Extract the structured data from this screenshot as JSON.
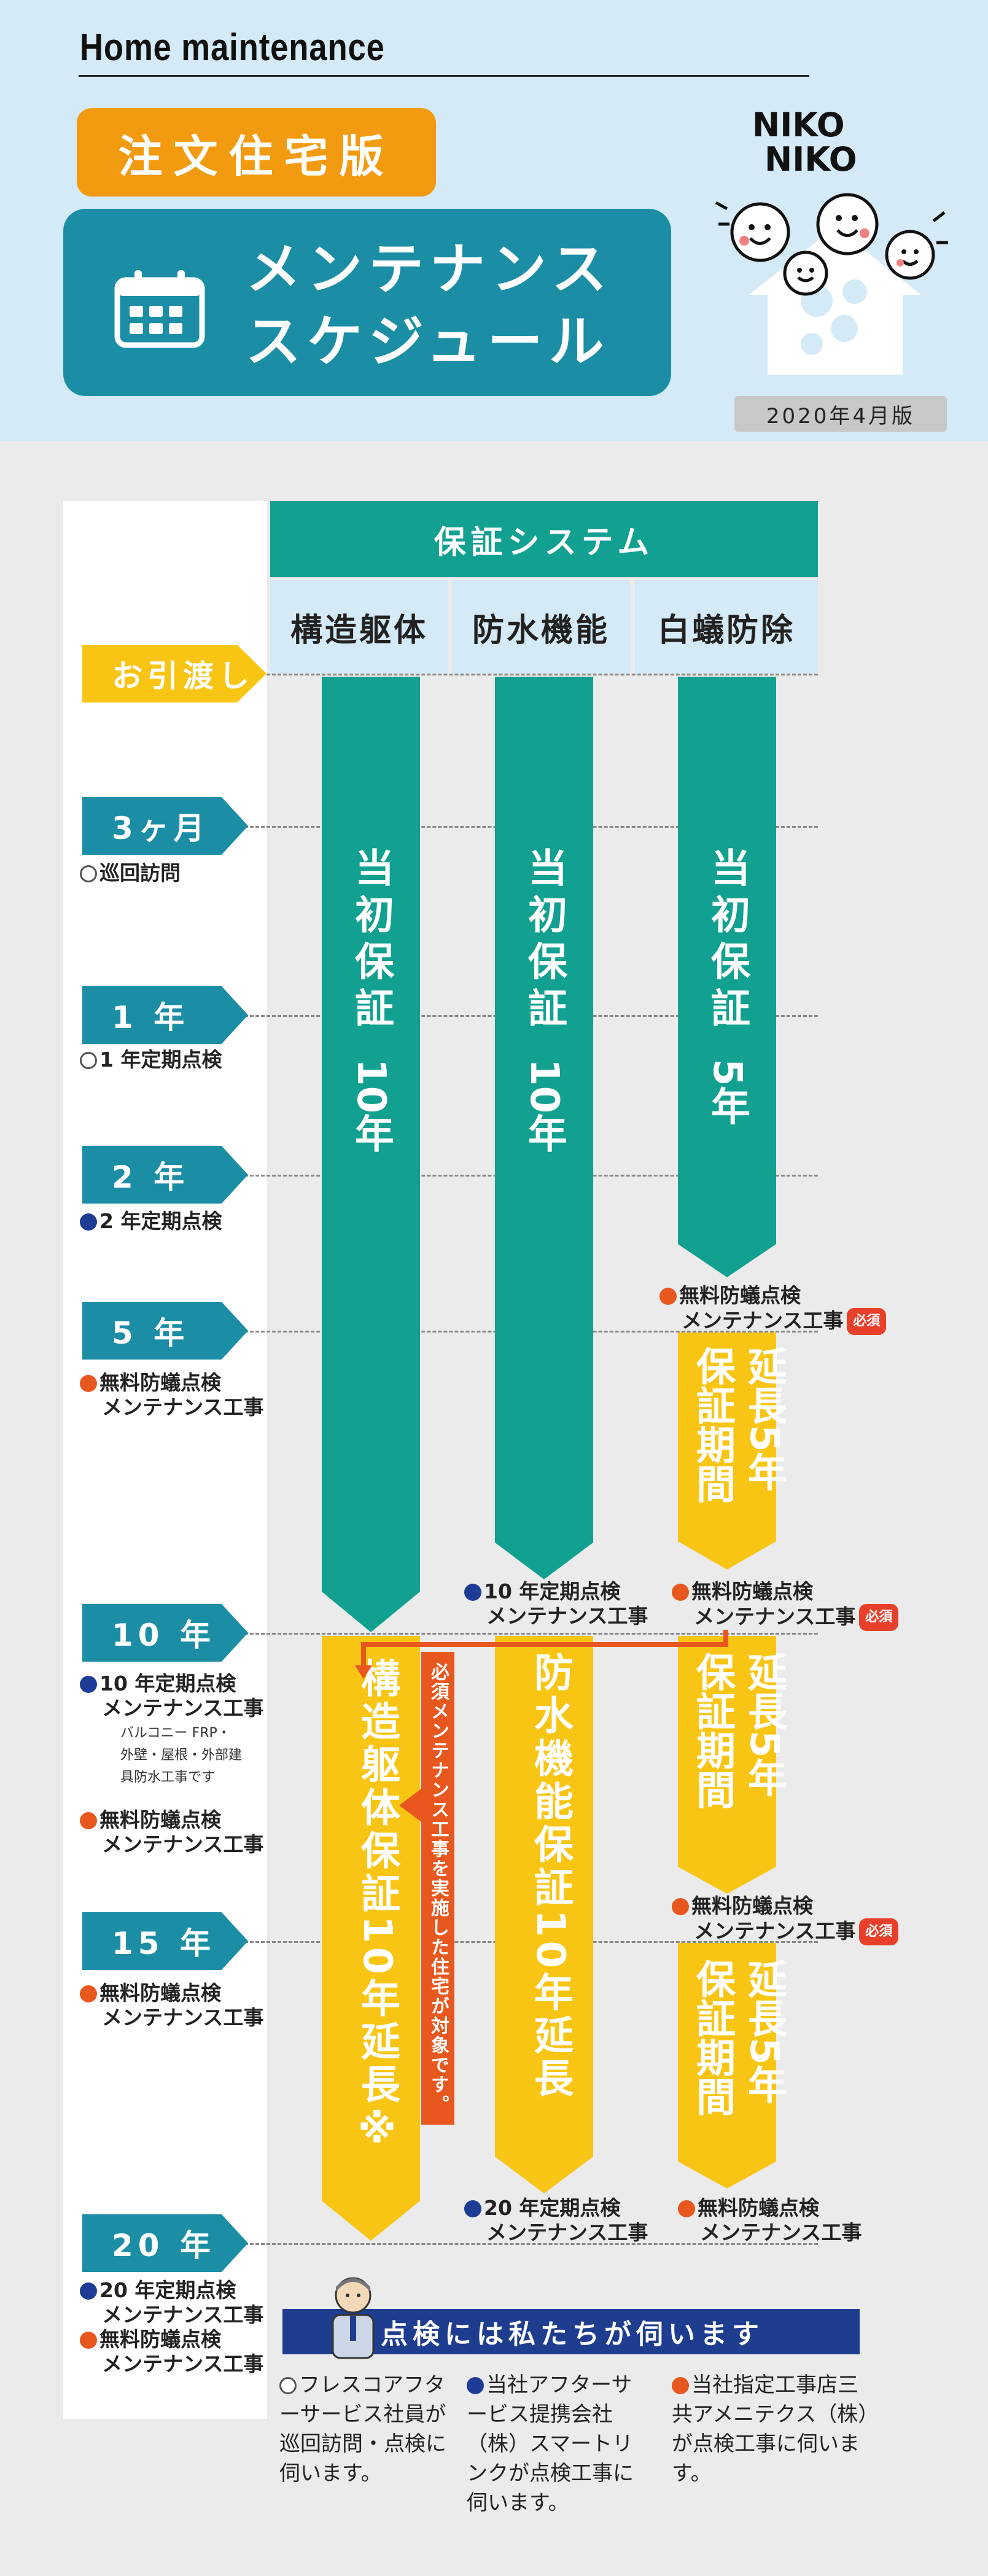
{
  "header": {
    "site_title": "Home maintenance",
    "edition_badge": "注文住宅版",
    "title_line1": "メンテナンス",
    "title_line2": "スケジュール",
    "edition_date": "2020年4月版",
    "logo_line1": "NIKO",
    "logo_line2": "NIKO"
  },
  "system": {
    "title": "保証システム",
    "columns": [
      "構造躯体",
      "防水機能",
      "白蟻防除"
    ]
  },
  "timeline": [
    {
      "label": "お引渡し",
      "style": "yellow",
      "notes": []
    },
    {
      "label": "3ヶ月",
      "style": "teal",
      "notes": [
        {
          "dot": "white",
          "text": "巡回訪問"
        }
      ]
    },
    {
      "label": "1 年",
      "style": "teal",
      "notes": [
        {
          "dot": "white",
          "text": "1 年定期点検"
        }
      ]
    },
    {
      "label": "2 年",
      "style": "teal",
      "notes": [
        {
          "dot": "blue",
          "text": "2 年定期点検"
        }
      ]
    },
    {
      "label": "5 年",
      "style": "teal",
      "notes": [
        {
          "dot": "orange",
          "text": "無料防蟻点検"
        },
        {
          "dot": "",
          "text": "メンテナンス工事"
        }
      ]
    },
    {
      "label": "10 年",
      "style": "teal",
      "notes": [
        {
          "dot": "blue",
          "text": "10 年定期点検"
        },
        {
          "dot": "",
          "text": "メンテナンス工事"
        }
      ]
    },
    {
      "label": "15 年",
      "style": "teal",
      "notes": [
        {
          "dot": "orange",
          "text": "無料防蟻点検"
        },
        {
          "dot": "",
          "text": "メンテナンス工事"
        }
      ]
    },
    {
      "label": "20 年",
      "style": "teal",
      "notes": [
        {
          "dot": "blue",
          "text": "20 年定期点検"
        },
        {
          "dot": "",
          "text": "メンテナンス工事"
        },
        {
          "dot": "orange",
          "text": "無料防蟻点検"
        },
        {
          "dot": "",
          "text": "メンテナンス工事"
        }
      ]
    }
  ],
  "ten_year_extra": {
    "small1": "バルコニー FRP・",
    "small2": "外壁・屋根・外部建",
    "small3": "具防水工事です",
    "note1": "無料防蟻点検",
    "note2": "メンテナンス工事"
  },
  "bars": {
    "initial_structure": "当初保証",
    "initial_structure_years": "10年",
    "initial_waterproof": "当初保証",
    "initial_waterproof_years": "10年",
    "initial_termite": "当初保証",
    "initial_termite_years": "5年",
    "ext_structure": "構造躯体保証10年延長※",
    "ext_waterproof": "防水機能保証10年延長",
    "ext_termite_left": "延長5年",
    "ext_termite_right": "保証期間"
  },
  "bar_notes": {
    "termite_5y_1": "無料防蟻点検",
    "termite_5y_2": "メンテナンス工事",
    "waterproof_10y_1": "10 年定期点検",
    "waterproof_10y_2": "メンテナンス工事",
    "termite_10y_1": "無料防蟻点検",
    "termite_10y_2": "メンテナンス工事",
    "termite_15y_1": "無料防蟻点検",
    "termite_15y_2": "メンテナンス工事",
    "waterproof_20y_1": "20 年定期点検",
    "waterproof_20y_2": "メンテナンス工事",
    "termite_20y_1": "無料防蟻点検",
    "termite_20y_2": "メンテナンス工事",
    "required": "必須"
  },
  "vertical_note": "必須メンテナンス工事を実施した住宅が対象です。",
  "visit": {
    "banner": "点検には私たちが伺います",
    "col1": "フレスコアフターサービス社員が巡回訪問・点検に伺います。",
    "col2": "当社アフターサービス提携会社（株）スマートリンクが点検工事に伺います。",
    "col3": "当社指定工事店三共アメニテクス（株）が点検工事に伺います。"
  },
  "colors": {
    "teal": "#12a090",
    "blue_title": "#1b8ea6",
    "yellow": "#f8c514",
    "orange": "#f29a10",
    "navy": "#1f3d8f",
    "red": "#e8402a"
  }
}
